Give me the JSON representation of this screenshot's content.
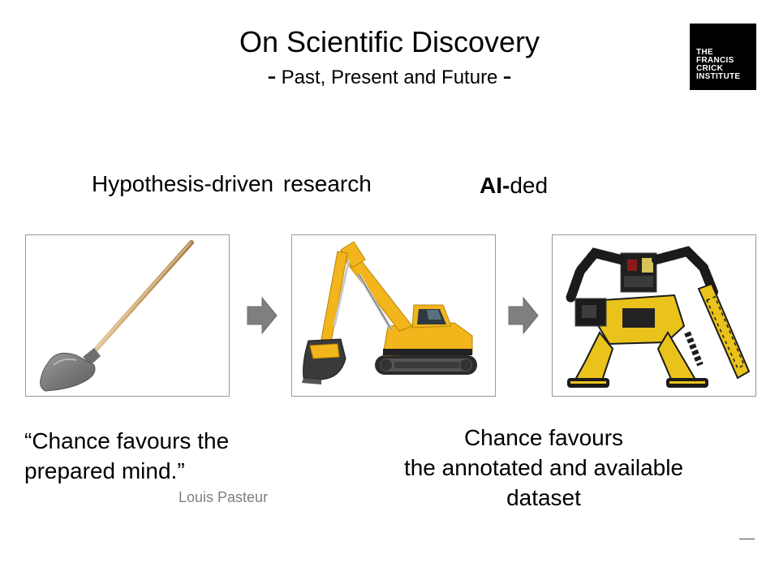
{
  "slide": {
    "title": "On Scientific Discovery",
    "subtitle_dash_left": "-",
    "subtitle": "Past, Present and Future",
    "subtitle_dash_right": "-",
    "logo": {
      "lines": [
        "THE",
        "FRANCIS",
        "CRICK",
        "INSTITUTE"
      ]
    },
    "heading_left": "Hypothesis-driven research",
    "heading_right_bold": "AI-",
    "heading_right_rest": "ded",
    "images": [
      {
        "icon": "shovel-image"
      },
      {
        "icon": "excavator-image"
      },
      {
        "icon": "robot-image"
      }
    ],
    "arrows": [
      {
        "icon": "right-arrow-icon"
      },
      {
        "icon": "right-arrow-icon"
      }
    ],
    "quote_left_lines": [
      "“Chance favours the",
      "prepared mind.”"
    ],
    "attribution": "Louis Pasteur",
    "quote_right_lines": [
      "Chance favours",
      "the annotated and available",
      "dataset"
    ]
  },
  "colors": {
    "text": "#000000",
    "attribution": "#7f7f7f",
    "frame_border": "#9a9a9a",
    "arrow": "#7f7f7f",
    "excavator_yellow": "#f2b51c",
    "logo_bg": "#000000"
  }
}
